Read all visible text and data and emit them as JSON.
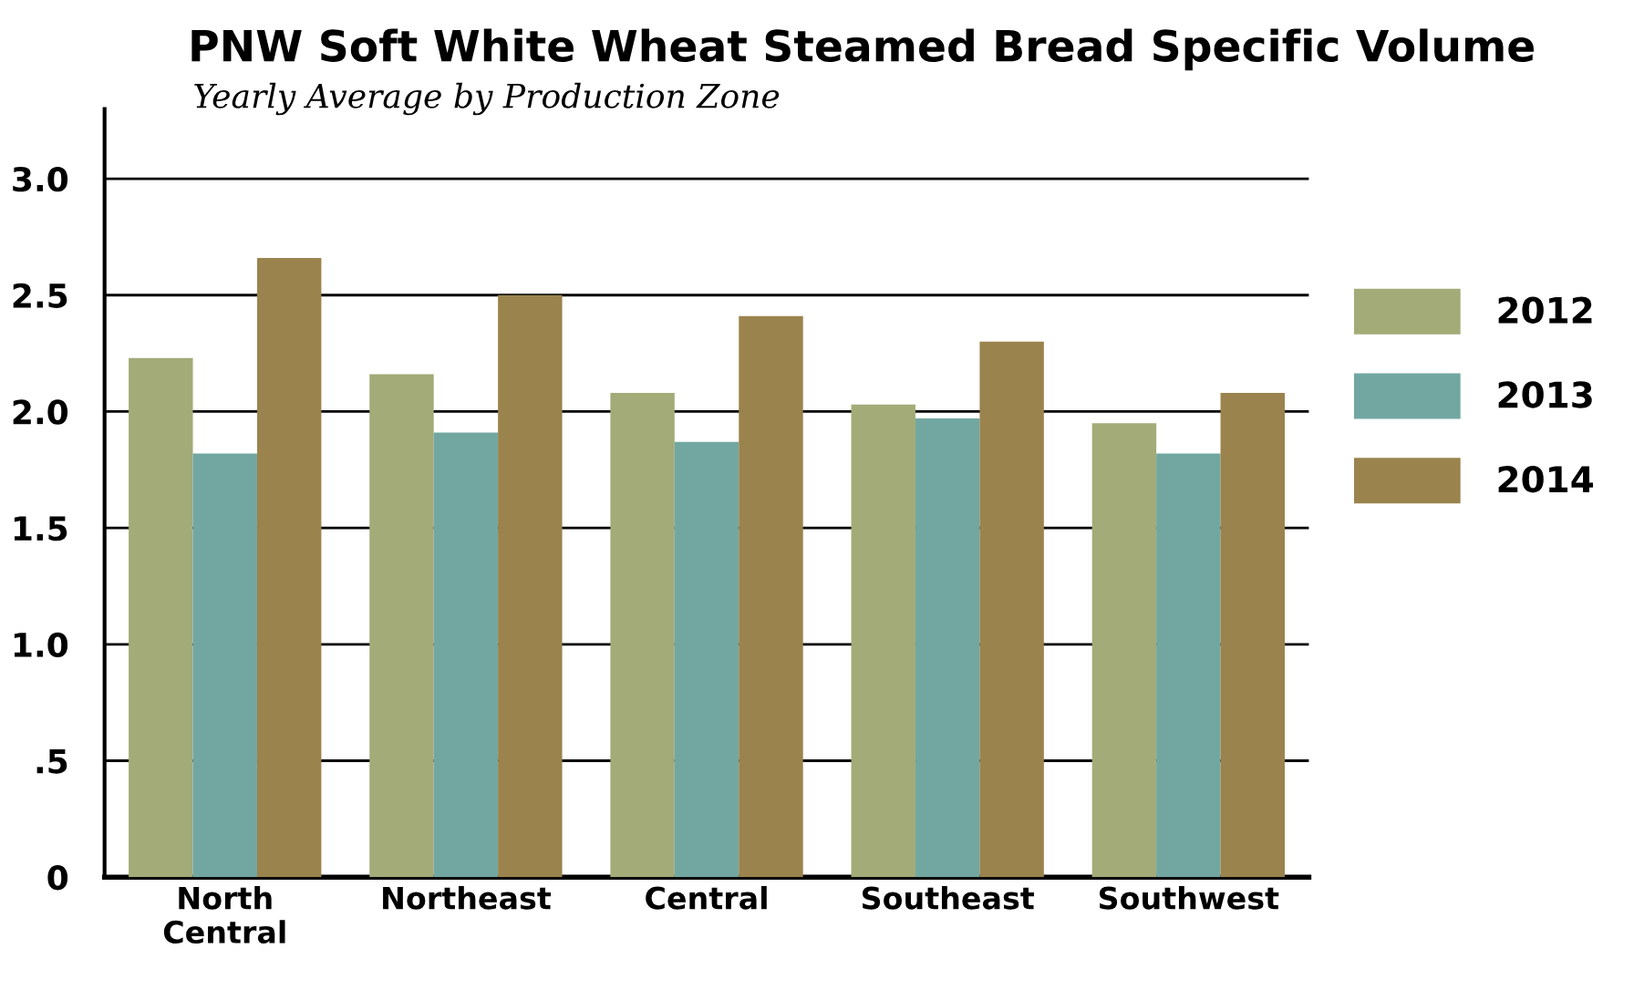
{
  "chart_data": {
    "type": "bar",
    "title": "PNW Soft White Wheat Steamed Bread Specific Volume",
    "subtitle": "Yearly Average by Production Zone",
    "categories": [
      "North\nCentral",
      "Northeast",
      "Central",
      "Southeast",
      "Southwest"
    ],
    "series": [
      {
        "name": "2012",
        "color": "#a3ab78",
        "values": [
          2.23,
          2.16,
          2.08,
          2.03,
          1.95
        ]
      },
      {
        "name": "2013",
        "color": "#72a7a1",
        "values": [
          1.82,
          1.91,
          1.87,
          1.97,
          1.82
        ]
      },
      {
        "name": "2014",
        "color": "#9a834d",
        "values": [
          2.66,
          2.5,
          2.41,
          2.3,
          2.08
        ]
      }
    ],
    "ylim": [
      0,
      3.3
    ],
    "yticks": [
      {
        "value": 0,
        "label": "0"
      },
      {
        "value": 0.5,
        "label": ".5"
      },
      {
        "value": 1.0,
        "label": "1.0"
      },
      {
        "value": 1.5,
        "label": "1.5"
      },
      {
        "value": 2.0,
        "label": "2.0"
      },
      {
        "value": 2.5,
        "label": "2.5"
      },
      {
        "value": 3.0,
        "label": "3.0"
      }
    ],
    "grid": "y",
    "legend": "right"
  }
}
